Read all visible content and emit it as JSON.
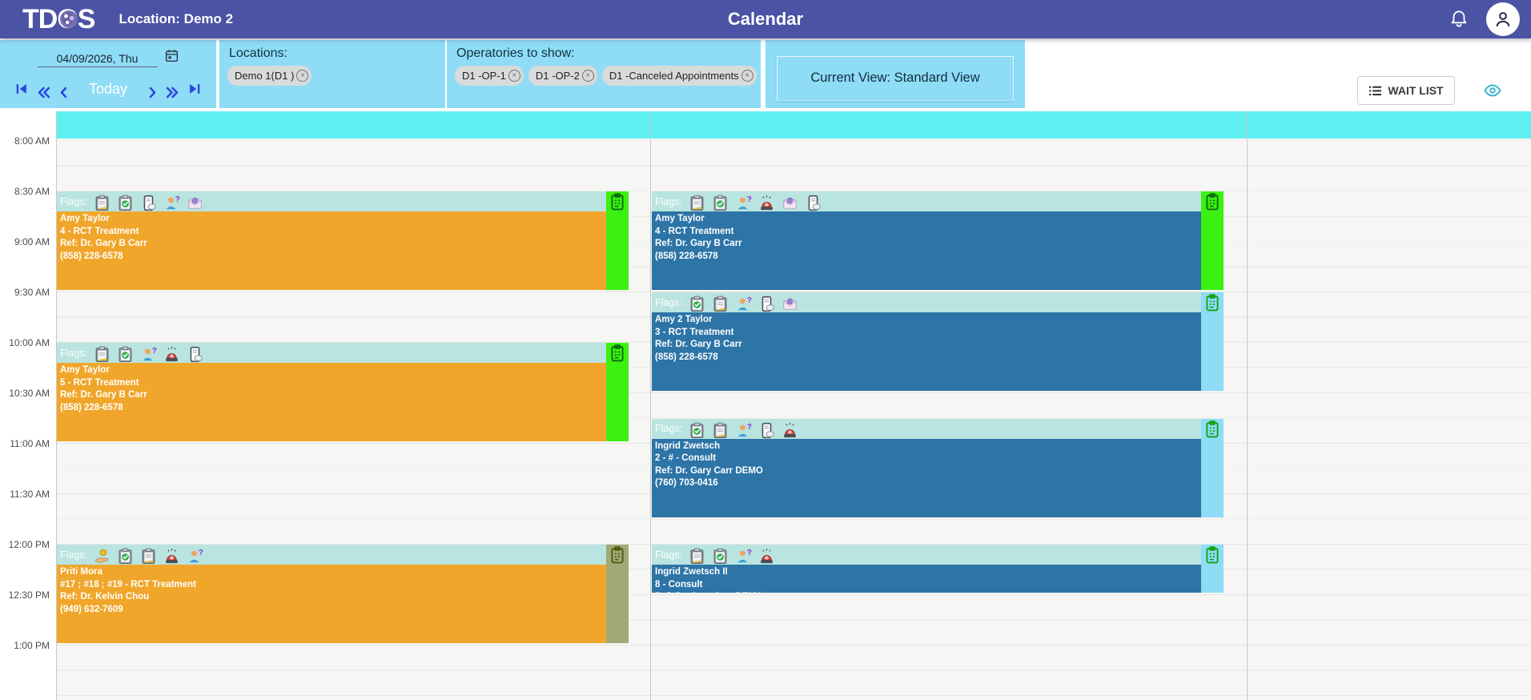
{
  "navbar": {
    "logo_left": "TD",
    "logo_o": "O",
    "logo_right": "S",
    "location_label": "Location: Demo 2",
    "title": "Calendar"
  },
  "toolbar": {
    "date_value": "04/09/2026, Thu",
    "today_label": "Today",
    "locations_label": "Locations:",
    "location_chips": [
      {
        "label": "Demo 1(D1 )"
      }
    ],
    "operatories_label": "Operatories to show:",
    "operatory_chips": [
      {
        "label": "D1 -OP-1"
      },
      {
        "label": "D1 -OP-2"
      },
      {
        "label": "D1 -Canceled Appointments"
      }
    ],
    "current_view_label": "Current View: Standard View",
    "wait_list_label": "WAIT LIST"
  },
  "calendar": {
    "flags_label": "Flags:",
    "time_labels": [
      "8:00 AM",
      "8:30 AM",
      "9:00 AM",
      "9:30 AM",
      "10:00 AM",
      "10:30 AM",
      "11:00 AM",
      "11:30 AM",
      "12:00 PM",
      "12:30 PM",
      "1:00 PM"
    ],
    "columns": [
      {
        "id": "op1",
        "name": "D1 -OP-1"
      },
      {
        "id": "op2",
        "name": "D1 -OP-2"
      },
      {
        "id": "canceled",
        "name": "D1 -Canceled Appointments"
      }
    ],
    "appointments": [
      {
        "column": "op1",
        "start": "8:30 AM",
        "end": "9:30 AM",
        "patient": "Amy Taylor",
        "treatment": "4 - RCT Treatment",
        "referral": "Ref: Dr. Gary B Carr",
        "phone": "(858) 228-6578",
        "flags": [
          "clipboard",
          "clipboard-check",
          "phone-chat",
          "person-question",
          "envelope-at"
        ],
        "body_color": "#f0a62a",
        "bar_color": "#3cf011",
        "bar_icon_color": "#0c6e0c"
      },
      {
        "column": "op1",
        "start": "10:00 AM",
        "end": "11:00 AM",
        "patient": "Amy Taylor",
        "treatment": "5 - RCT Treatment",
        "referral": "Ref: Dr. Gary B Carr",
        "phone": "(858) 228-6578",
        "flags": [
          "clipboard",
          "clipboard-check",
          "person-question",
          "alarm",
          "phone-chat"
        ],
        "body_color": "#f0a62a",
        "bar_color": "#3cf011",
        "bar_icon_color": "#0c6e0c"
      },
      {
        "column": "op1",
        "start": "12:00 PM",
        "end": "1:00 PM",
        "patient": "Priti Mora",
        "treatment": "#17 ; #18 ; #19 - RCT Treatment",
        "referral": "Ref: Dr. Kelvin Chou",
        "phone": "(949) 632-7609",
        "flags": [
          "hand-coin",
          "clipboard-check",
          "clipboard",
          "alarm",
          "person-question"
        ],
        "body_color": "#f0a62a",
        "bar_color": "#a3a878",
        "bar_icon_color": "#4f5c10"
      },
      {
        "column": "op2",
        "start": "8:30 AM",
        "end": "9:30 AM",
        "patient": "Amy Taylor",
        "treatment": "4 - RCT Treatment",
        "referral": "Ref: Dr. Gary B Carr",
        "phone": "(858) 228-6578",
        "flags": [
          "clipboard",
          "clipboard-check",
          "person-question",
          "alarm",
          "envelope-at",
          "phone-chat"
        ],
        "body_color": "#2d74a7",
        "bar_color": "#3cf011",
        "bar_icon_color": "#0c6e0c"
      },
      {
        "column": "op2",
        "start": "9:30 AM",
        "end": "10:30 AM",
        "patient": "Amy 2 Taylor",
        "treatment": "3 - RCT Treatment",
        "referral": "Ref: Dr. Gary B Carr",
        "phone": "(858) 228-6578",
        "flags": [
          "clipboard-check",
          "clipboard",
          "person-question",
          "phone-chat",
          "envelope-at"
        ],
        "body_color": "#2d74a7",
        "bar_color": "#8edcf6",
        "bar_icon_color": "#15a315"
      },
      {
        "column": "op2",
        "start": "10:45 AM",
        "end": "11:45 AM",
        "patient": "Ingrid Zwetsch",
        "treatment": "2 - # - Consult",
        "referral": "Ref: Dr. Gary Carr DEMO",
        "phone": "(760) 703-0416",
        "flags": [
          "clipboard-check",
          "clipboard",
          "person-question",
          "phone-chat",
          "alarm"
        ],
        "body_color": "#2d74a7",
        "bar_color": "#8edcf6",
        "bar_icon_color": "#15a315"
      },
      {
        "column": "op2",
        "start": "12:00 PM",
        "end": "12:30 PM",
        "patient": "Ingrid Zwetsch II",
        "treatment": "8 - Consult",
        "referral": "Ref: Dr. Gary Carr DEMO",
        "phone": "",
        "flags": [
          "clipboard",
          "clipboard-check",
          "person-question",
          "alarm"
        ],
        "body_color": "#2d74a7",
        "bar_color": "#8edcf6",
        "bar_icon_color": "#15a315"
      }
    ],
    "colors": {
      "navbar_bg": "#4a53a4",
      "toolbar_bg": "#8edcf6",
      "cyan_strip": "#5ff0f1",
      "flags_strip_bg": "#b9e4df",
      "orange_appt": "#f0a62a",
      "blue_appt": "#2d74a7",
      "green_bar": "#3cf011",
      "light_blue_bar": "#8edcf6",
      "olive_bar": "#a3a878"
    }
  }
}
